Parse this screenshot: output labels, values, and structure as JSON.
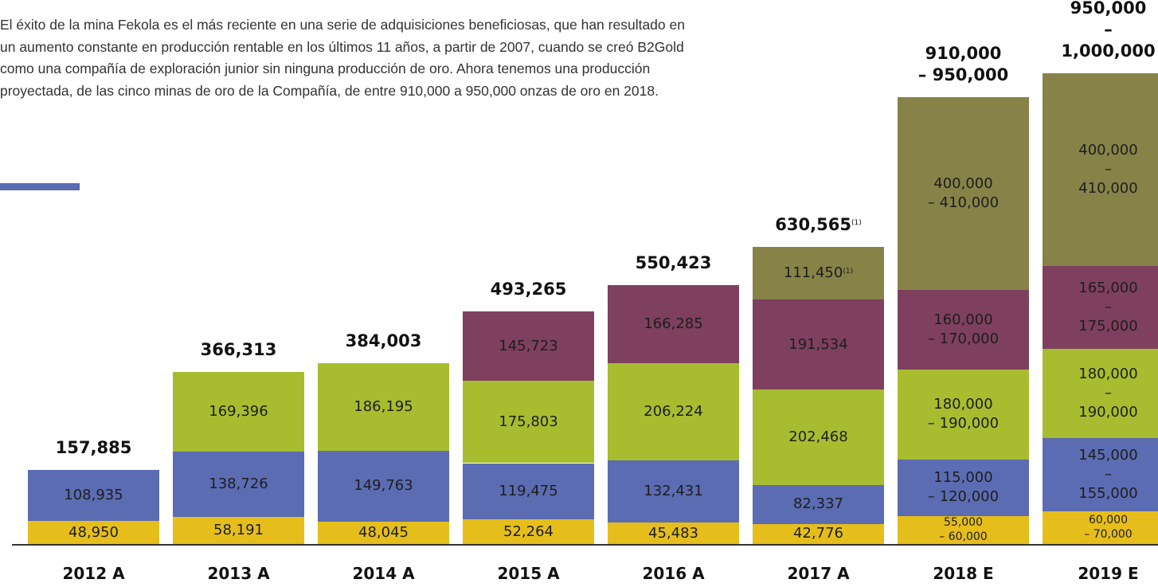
{
  "chart_data": {
    "type": "stacked_bar",
    "description": "El éxito de la mina Fekola es el más reciente en una serie de adquisiciones beneficiosas, que han resultado en un aumento constante en producción rentable en los últimos 11 años, a partir de 2007, cuando se creó B2Gold como una compañía de exploración junior sin ninguna producción de oro. Ahora tenemos una producción proyectada, de las cinco minas de oro de la Compañía, de entre 910,000 a 950,000 onzas de oro en 2018.",
    "categories": [
      "2012 A",
      "2013 A",
      "2014 A",
      "2015 A",
      "2016 A",
      "2017 A",
      "2018 E",
      "2019 E"
    ],
    "ylim": [
      0,
      1000000
    ],
    "series": [
      {
        "color": "#e5be1c",
        "values": [
          48950,
          58191,
          48045,
          52264,
          45483,
          42776,
          [
            55000,
            60000
          ],
          [
            60000,
            70000
          ]
        ],
        "value_labels": [
          "48,950",
          "58,191",
          "48,045",
          "52,264",
          "45,483",
          "42,776",
          "55,000\n– 60,000",
          "60,000\n– 70,000"
        ]
      },
      {
        "color": "#5b6cb3",
        "values": [
          108935,
          138726,
          149763,
          119475,
          132431,
          82337,
          [
            115000,
            120000
          ],
          [
            145000,
            155000
          ]
        ],
        "value_labels": [
          "108,935",
          "138,726",
          "149,763",
          "119,475",
          "132,431",
          "82,337",
          "115,000\n– 120,000",
          "145,000\n– 155,000"
        ]
      },
      {
        "color": "#a8bc2f",
        "values": [
          null,
          169396,
          186195,
          175803,
          206224,
          202468,
          [
            180000,
            190000
          ],
          [
            180000,
            190000
          ]
        ],
        "value_labels": [
          null,
          "169,396",
          "186,195",
          "175,803",
          "206,224",
          "202,468",
          "180,000\n– 190,000",
          "180,000\n– 190,000"
        ]
      },
      {
        "color": "#7e405e",
        "values": [
          null,
          null,
          null,
          145723,
          166285,
          191534,
          [
            160000,
            170000
          ],
          [
            165000,
            175000
          ]
        ],
        "value_labels": [
          null,
          null,
          null,
          "145,723",
          "166,285",
          "191,534",
          "160,000\n– 170,000",
          "165,000\n– 175,000"
        ]
      },
      {
        "color": "#878248",
        "values": [
          null,
          null,
          null,
          null,
          null,
          111450,
          [
            400000,
            410000
          ],
          [
            400000,
            410000
          ]
        ],
        "value_labels": [
          null,
          null,
          null,
          null,
          null,
          "111,450",
          "400,000\n– 410,000",
          "400,000\n– 410,000"
        ],
        "value_notes": [
          null,
          null,
          null,
          null,
          null,
          "(1)",
          null,
          null
        ]
      }
    ],
    "totals": {
      "values": [
        157885,
        366313,
        384003,
        493265,
        550423,
        630565,
        [
          910000,
          950000
        ],
        [
          950000,
          1000000
        ]
      ],
      "value_labels": [
        "157,885",
        "366,313",
        "384,003",
        "493,265",
        "550,423",
        "630,565",
        "910,000\n– 950,000",
        "950,000\n– 1,000,000"
      ],
      "value_notes": [
        null,
        null,
        null,
        null,
        null,
        "(1)",
        null,
        null
      ]
    }
  }
}
